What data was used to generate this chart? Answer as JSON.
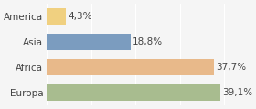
{
  "categories": [
    "Europa",
    "Africa",
    "Asia",
    "America"
  ],
  "values": [
    39.1,
    37.7,
    18.8,
    4.3
  ],
  "labels": [
    "39,1%",
    "37,7%",
    "18,8%",
    "4,3%"
  ],
  "bar_colors": [
    "#a8bc8f",
    "#e8b98a",
    "#7b9cbf",
    "#f0d080"
  ],
  "background_color": "#f5f5f5",
  "xlim": [
    0,
    44
  ],
  "label_fontsize": 7.5,
  "tick_fontsize": 7.5
}
